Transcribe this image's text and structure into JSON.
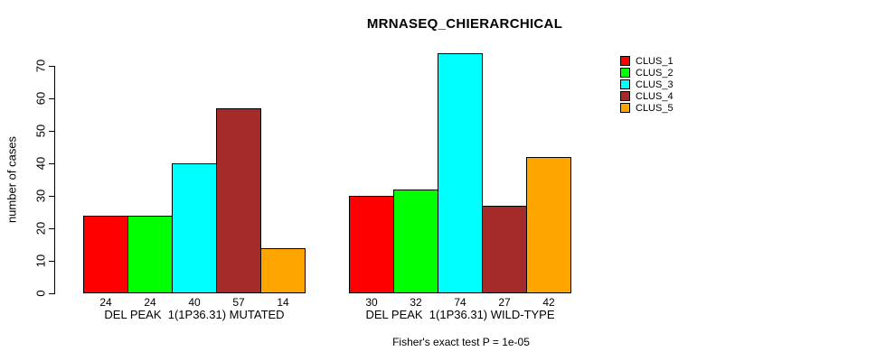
{
  "chart_data": {
    "type": "bar",
    "title": "MRNASEQ_CHIERARCHICAL",
    "xlabel": "",
    "ylabel": "number of cases",
    "ylim": [
      0,
      74
    ],
    "yticks": [
      0,
      10,
      20,
      30,
      40,
      50,
      60,
      70
    ],
    "grid": false,
    "legend_position": "top-right",
    "bar_value_labels": true,
    "categories": [
      "DEL PEAK  1(1P36.31) MUTATED",
      "DEL PEAK  1(1P36.31) WILD-TYPE"
    ],
    "series": [
      {
        "name": "CLUS_1",
        "color": "#ff0000",
        "values": [
          24,
          30
        ]
      },
      {
        "name": "CLUS_2",
        "color": "#00ff00",
        "values": [
          24,
          32
        ]
      },
      {
        "name": "CLUS_3",
        "color": "#00ffff",
        "values": [
          40,
          74
        ]
      },
      {
        "name": "CLUS_4",
        "color": "#a52a2a",
        "values": [
          57,
          27
        ]
      },
      {
        "name": "CLUS_5",
        "color": "#ffa500",
        "values": [
          14,
          42
        ]
      }
    ],
    "annotation": "Fisher's exact test P = 1e-05"
  },
  "colors": {
    "background": "#ffffff",
    "axis": "#000000",
    "text": "#000000",
    "bar_border": "#000000"
  }
}
